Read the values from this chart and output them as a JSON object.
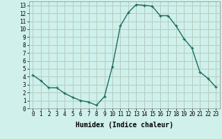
{
  "x": [
    0,
    1,
    2,
    3,
    4,
    5,
    6,
    7,
    8,
    9,
    10,
    11,
    12,
    13,
    14,
    15,
    16,
    17,
    18,
    19,
    20,
    21,
    22,
    23
  ],
  "y": [
    4.2,
    3.5,
    2.6,
    2.6,
    1.9,
    1.4,
    1.0,
    0.8,
    0.4,
    1.5,
    5.3,
    10.4,
    12.1,
    13.1,
    13.0,
    12.9,
    11.7,
    11.7,
    10.4,
    8.8,
    7.6,
    4.6,
    3.8,
    2.7
  ],
  "line_color": "#1a6b5e",
  "marker": "+",
  "bg_color": "#cff0eb",
  "grid_major_color": "#aaddcc",
  "grid_red_color": "#d08888",
  "xlabel": "Humidex (Indice chaleur)",
  "xlim": [
    -0.5,
    23.5
  ],
  "ylim": [
    0,
    13.5
  ],
  "xticks": [
    0,
    1,
    2,
    3,
    4,
    5,
    6,
    7,
    8,
    9,
    10,
    11,
    12,
    13,
    14,
    15,
    16,
    17,
    18,
    19,
    20,
    21,
    22,
    23
  ],
  "yticks": [
    0,
    1,
    2,
    3,
    4,
    5,
    6,
    7,
    8,
    9,
    10,
    11,
    12,
    13
  ],
  "tick_fontsize": 5.5,
  "xlabel_fontsize": 7
}
